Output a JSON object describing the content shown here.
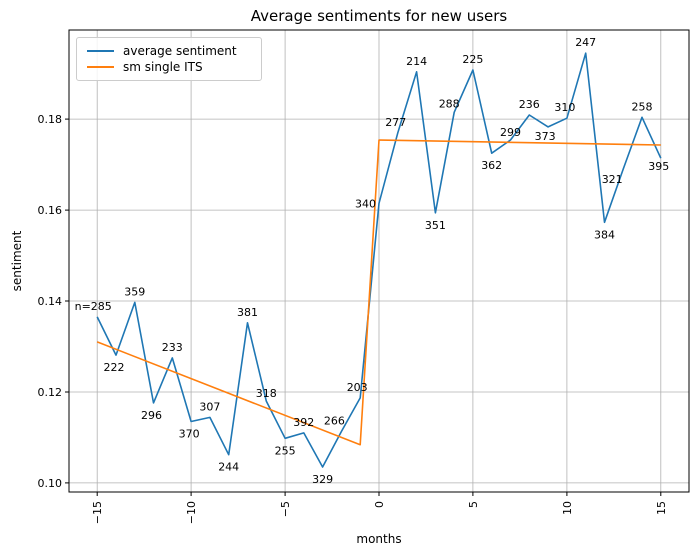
{
  "title": "Average sentiments for new users",
  "axes": {
    "xlabel": "months",
    "ylabel": "sentiment",
    "xlim": [
      -16.5,
      16.5
    ],
    "ylim": [
      0.098,
      0.1996
    ],
    "x_ticks": [
      {
        "v": -15,
        "label": "−15"
      },
      {
        "v": -10,
        "label": "−10"
      },
      {
        "v": -5,
        "label": "−5"
      },
      {
        "v": 0,
        "label": "0"
      },
      {
        "v": 5,
        "label": "5"
      },
      {
        "v": 10,
        "label": "10"
      },
      {
        "v": 15,
        "label": "15"
      }
    ],
    "y_ticks": [
      {
        "v": 0.1,
        "label": "0.10"
      },
      {
        "v": 0.12,
        "label": "0.12"
      },
      {
        "v": 0.14,
        "label": "0.14"
      },
      {
        "v": 0.16,
        "label": "0.16"
      },
      {
        "v": 0.18,
        "label": "0.18"
      }
    ]
  },
  "legend": {
    "items": [
      {
        "label": "average sentiment",
        "color": "#1f77b4"
      },
      {
        "label": "sm single ITS",
        "color": "#ff7f0e"
      }
    ]
  },
  "colors": {
    "series_blue": "#1f77b4",
    "series_orange": "#ff7f0e",
    "grid": "#b0b0b0",
    "spine": "#000000",
    "background": "#ffffff"
  },
  "chart_data": {
    "type": "line",
    "title": "Average sentiments for new users",
    "xlabel": "months",
    "ylabel": "sentiment",
    "xlim": [
      -16.5,
      16.5
    ],
    "ylim": [
      0.098,
      0.1996
    ],
    "grid": true,
    "legend_position": "upper left",
    "series": [
      {
        "name": "average sentiment",
        "color": "#1f77b4",
        "points": [
          {
            "m": -15,
            "v": 0.1365,
            "n": "n=285",
            "pos": "a",
            "dx": -4
          },
          {
            "m": -14,
            "v": 0.1281,
            "n": "222",
            "pos": "b",
            "dx": -2
          },
          {
            "m": -13,
            "v": 0.1397,
            "n": "359",
            "pos": "a"
          },
          {
            "m": -12,
            "v": 0.1176,
            "n": "296",
            "pos": "b",
            "dx": -2
          },
          {
            "m": -11,
            "v": 0.1275,
            "n": "233",
            "pos": "a"
          },
          {
            "m": -10,
            "v": 0.1135,
            "n": "370",
            "pos": "b",
            "dx": -2
          },
          {
            "m": -9,
            "v": 0.1144,
            "n": "307",
            "pos": "a"
          },
          {
            "m": -8,
            "v": 0.1062,
            "n": "244",
            "pos": "b"
          },
          {
            "m": -7,
            "v": 0.1352,
            "n": "381",
            "pos": "a"
          },
          {
            "m": -6,
            "v": 0.118,
            "n": "318",
            "pos": "a",
            "dy": 3
          },
          {
            "m": -5,
            "v": 0.1098,
            "n": "255",
            "pos": "b"
          },
          {
            "m": -4,
            "v": 0.111,
            "n": "392",
            "pos": "a"
          },
          {
            "m": -3,
            "v": 0.1035,
            "n": "329",
            "pos": "b"
          },
          {
            "m": -2,
            "v": 0.1113,
            "n": "266",
            "pos": "a",
            "dx": -7
          },
          {
            "m": -1,
            "v": 0.1187,
            "n": "203",
            "pos": "a",
            "dx": -3
          },
          {
            "m": 0,
            "v": 0.1615,
            "n": "340",
            "pos": "l"
          },
          {
            "m": 1,
            "v": 0.177,
            "n": "277",
            "pos": "a",
            "dx": -2
          },
          {
            "m": 2,
            "v": 0.1904,
            "n": "214",
            "pos": "a"
          },
          {
            "m": 3,
            "v": 0.1594,
            "n": "351",
            "pos": "b"
          },
          {
            "m": 4,
            "v": 0.1815,
            "n": "288",
            "pos": "a",
            "dx": -5,
            "dy": 2
          },
          {
            "m": 5,
            "v": 0.1908,
            "n": "225",
            "pos": "a"
          },
          {
            "m": 6,
            "v": 0.1725,
            "n": "362",
            "pos": "b"
          },
          {
            "m": 7,
            "v": 0.1754,
            "n": "299",
            "pos": "a",
            "dy": 3
          },
          {
            "m": 8,
            "v": 0.1809,
            "n": "236",
            "pos": "a"
          },
          {
            "m": 9,
            "v": 0.1783,
            "n": "373",
            "pos": "b",
            "dx": -3,
            "dy": -3
          },
          {
            "m": 10,
            "v": 0.1802,
            "n": "310",
            "pos": "a",
            "dx": -2
          },
          {
            "m": 11,
            "v": 0.1945,
            "n": "247",
            "pos": "a"
          },
          {
            "m": 12,
            "v": 0.1573,
            "n": "384",
            "pos": "b"
          },
          {
            "m": 13,
            "v": 0.169,
            "n": "321",
            "pos": "b",
            "dx": -11,
            "dy": -2
          },
          {
            "m": 14,
            "v": 0.1804,
            "n": "258",
            "pos": "a"
          },
          {
            "m": 15,
            "v": 0.1714,
            "n": "395",
            "pos": "b",
            "dx": -2,
            "dy": -4
          }
        ]
      },
      {
        "name": "sm single ITS",
        "color": "#ff7f0e",
        "points": [
          {
            "m": -15,
            "v": 0.131
          },
          {
            "m": -1,
            "v": 0.1084
          },
          {
            "m": 0,
            "v": 0.1754
          },
          {
            "m": 15,
            "v": 0.1743
          }
        ]
      }
    ]
  }
}
